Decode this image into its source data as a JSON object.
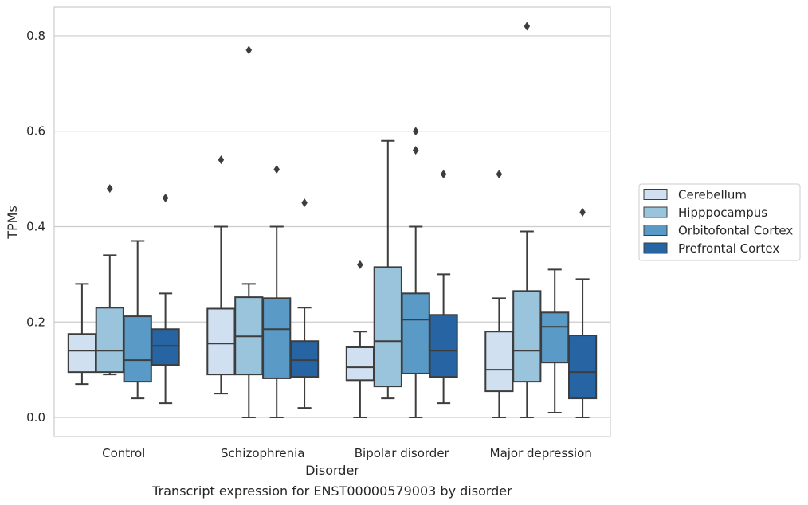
{
  "chart_data": {
    "type": "box",
    "caption": "Transcript expression for ENST00000579003 by disorder",
    "xlabel": "Disorder",
    "ylabel": "TPMs",
    "ylim": [
      -0.04,
      0.86
    ],
    "yticks": [
      "0.0",
      "0.2",
      "0.4",
      "0.6",
      "0.8"
    ],
    "ytick_values": [
      0.0,
      0.2,
      0.4,
      0.6,
      0.8
    ],
    "grid": "horizontal",
    "legend_position": "right",
    "categories": [
      "Control",
      "Schizophrenia",
      "Bipolar disorder",
      "Major depression"
    ],
    "series": [
      {
        "name": "Cerebellum",
        "color": "#d0e0f0",
        "boxes": [
          {
            "whislo": 0.07,
            "q1": 0.095,
            "med": 0.14,
            "q3": 0.175,
            "whishi": 0.28,
            "fliers": []
          },
          {
            "whislo": 0.05,
            "q1": 0.09,
            "med": 0.155,
            "q3": 0.228,
            "whishi": 0.4,
            "fliers": [
              0.54
            ]
          },
          {
            "whislo": 0.0,
            "q1": 0.078,
            "med": 0.105,
            "q3": 0.147,
            "whishi": 0.18,
            "fliers": [
              0.32
            ]
          },
          {
            "whislo": 0.0,
            "q1": 0.055,
            "med": 0.1,
            "q3": 0.18,
            "whishi": 0.25,
            "fliers": [
              0.51
            ]
          }
        ]
      },
      {
        "name": "Hipppocampus",
        "color": "#9ac3dc",
        "boxes": [
          {
            "whislo": 0.09,
            "q1": 0.095,
            "med": 0.14,
            "q3": 0.23,
            "whishi": 0.34,
            "fliers": [
              0.48
            ]
          },
          {
            "whislo": 0.0,
            "q1": 0.09,
            "med": 0.17,
            "q3": 0.252,
            "whishi": 0.28,
            "fliers": [
              0.77
            ]
          },
          {
            "whislo": 0.04,
            "q1": 0.065,
            "med": 0.16,
            "q3": 0.315,
            "whishi": 0.58,
            "fliers": []
          },
          {
            "whislo": 0.0,
            "q1": 0.075,
            "med": 0.14,
            "q3": 0.265,
            "whishi": 0.39,
            "fliers": [
              0.82
            ]
          }
        ]
      },
      {
        "name": "Orbitofontal Cortex",
        "color": "#5a9ac6",
        "boxes": [
          {
            "whislo": 0.04,
            "q1": 0.075,
            "med": 0.12,
            "q3": 0.212,
            "whishi": 0.37,
            "fliers": []
          },
          {
            "whislo": 0.0,
            "q1": 0.082,
            "med": 0.185,
            "q3": 0.25,
            "whishi": 0.4,
            "fliers": [
              0.52
            ]
          },
          {
            "whislo": 0.0,
            "q1": 0.092,
            "med": 0.205,
            "q3": 0.26,
            "whishi": 0.4,
            "fliers": [
              0.56,
              0.6
            ]
          },
          {
            "whislo": 0.01,
            "q1": 0.115,
            "med": 0.19,
            "q3": 0.22,
            "whishi": 0.31,
            "fliers": []
          }
        ]
      },
      {
        "name": "Prefrontal Cortex",
        "color": "#2664a3",
        "boxes": [
          {
            "whislo": 0.03,
            "q1": 0.11,
            "med": 0.15,
            "q3": 0.185,
            "whishi": 0.26,
            "fliers": [
              0.46
            ]
          },
          {
            "whislo": 0.02,
            "q1": 0.085,
            "med": 0.12,
            "q3": 0.16,
            "whishi": 0.23,
            "fliers": [
              0.45
            ]
          },
          {
            "whislo": 0.03,
            "q1": 0.085,
            "med": 0.14,
            "q3": 0.215,
            "whishi": 0.3,
            "fliers": [
              0.51
            ]
          },
          {
            "whislo": 0.0,
            "q1": 0.04,
            "med": 0.095,
            "q3": 0.172,
            "whishi": 0.29,
            "fliers": [
              0.43
            ]
          }
        ]
      }
    ]
  }
}
